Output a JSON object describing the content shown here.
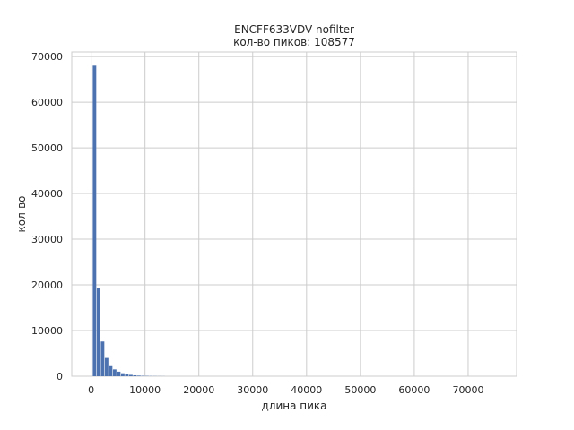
{
  "chart_data": {
    "type": "bar",
    "title": "ENCFF633VDV nofilter",
    "subtitle": "кол-во пиков: 108577",
    "xlabel": "длина пика",
    "ylabel": "кол-во",
    "xlim": [
      -3600,
      79000
    ],
    "ylim": [
      0,
      71000
    ],
    "xticks": [
      0,
      10000,
      20000,
      30000,
      40000,
      50000,
      60000,
      70000
    ],
    "yticks": [
      0,
      10000,
      20000,
      30000,
      40000,
      50000,
      60000,
      70000
    ],
    "grid": true,
    "bin_width": 750,
    "bins": [
      {
        "x0": 300,
        "count": 68000
      },
      {
        "x0": 1050,
        "count": 19300
      },
      {
        "x0": 1800,
        "count": 7600
      },
      {
        "x0": 2550,
        "count": 4000
      },
      {
        "x0": 3300,
        "count": 2400
      },
      {
        "x0": 4050,
        "count": 1500
      },
      {
        "x0": 4800,
        "count": 1000
      },
      {
        "x0": 5550,
        "count": 650
      },
      {
        "x0": 6300,
        "count": 450
      },
      {
        "x0": 7050,
        "count": 300
      },
      {
        "x0": 7800,
        "count": 200
      },
      {
        "x0": 8550,
        "count": 130
      },
      {
        "x0": 9300,
        "count": 90
      },
      {
        "x0": 10050,
        "count": 60
      },
      {
        "x0": 10800,
        "count": 40
      },
      {
        "x0": 11550,
        "count": 30
      },
      {
        "x0": 12300,
        "count": 20
      },
      {
        "x0": 13050,
        "count": 15
      }
    ],
    "bar_color": "#4c72b0"
  }
}
